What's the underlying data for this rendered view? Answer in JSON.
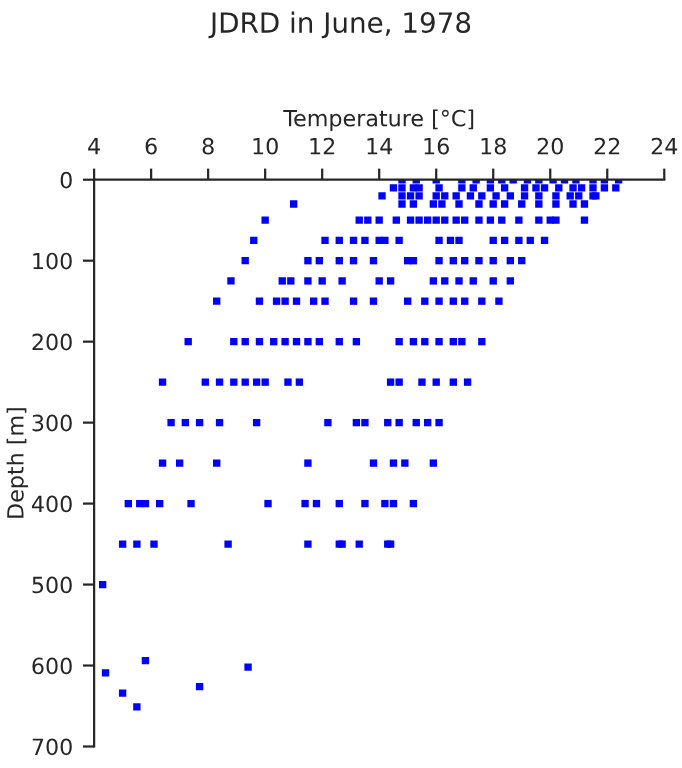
{
  "chart_data": {
    "type": "scatter",
    "title": "JDRD in June, 1978",
    "xlabel": "Temperature [°C]",
    "ylabel": "Depth [m]",
    "xlim": [
      4,
      24
    ],
    "xticks": [
      4,
      6,
      8,
      10,
      12,
      14,
      16,
      18,
      20,
      22,
      24
    ],
    "ylim": [
      700,
      0
    ],
    "yticks": [
      0,
      100,
      200,
      300,
      400,
      500,
      600,
      700
    ],
    "grid": false,
    "legend": false,
    "marker": "square",
    "series": [
      {
        "color": "#0000ff",
        "x": [
          14.8,
          15.3,
          16.0,
          16.9,
          17.4,
          17.9,
          18.3,
          18.7,
          19.2,
          19.6,
          20.1,
          20.5,
          20.9,
          21.5,
          21.9,
          22.4,
          14.5,
          14.8,
          15.2,
          15.4,
          16.1,
          16.9,
          17.3,
          17.9,
          18.4,
          19.1,
          19.5,
          19.8,
          20.3,
          20.8,
          21.1,
          21.5,
          21.9,
          22.3,
          14.1,
          14.8,
          15.1,
          15.4,
          16.0,
          16.3,
          16.7,
          17.2,
          17.6,
          18.1,
          18.6,
          19.1,
          19.6,
          20.2,
          20.7,
          21.0,
          21.5,
          21.6,
          11.0,
          14.8,
          15.2,
          15.9,
          16.2,
          16.8,
          17.5,
          18.0,
          18.4,
          19.0,
          19.6,
          20.2,
          20.8,
          21.2,
          10.0,
          13.3,
          13.6,
          14.0,
          14.6,
          15.1,
          15.4,
          15.7,
          16.0,
          16.3,
          16.7,
          17.0,
          17.5,
          17.9,
          18.3,
          18.9,
          19.6,
          20.0,
          20.2,
          21.2,
          9.6,
          12.1,
          12.6,
          13.1,
          13.5,
          14.0,
          14.2,
          14.7,
          16.1,
          16.5,
          16.8,
          18.0,
          18.4,
          18.9,
          19.3,
          19.8,
          9.3,
          11.5,
          11.9,
          12.6,
          13.1,
          13.8,
          15.0,
          15.2,
          16.1,
          16.6,
          17.0,
          17.5,
          18.0,
          18.6,
          19.0,
          8.8,
          10.6,
          10.9,
          11.5,
          12.0,
          12.7,
          14.0,
          14.4,
          15.9,
          16.3,
          16.8,
          17.3,
          18.0,
          18.6,
          8.3,
          9.8,
          10.4,
          10.7,
          11.1,
          11.7,
          12.1,
          13.1,
          13.8,
          15.0,
          15.6,
          16.1,
          16.6,
          17.0,
          17.6,
          18.2,
          7.3,
          8.9,
          9.3,
          9.8,
          10.3,
          10.7,
          11.1,
          11.5,
          11.9,
          12.6,
          13.2,
          14.7,
          15.2,
          15.6,
          16.1,
          16.6,
          16.9,
          17.6,
          6.4,
          7.9,
          8.4,
          8.9,
          9.3,
          9.7,
          10.0,
          10.8,
          11.2,
          14.4,
          14.7,
          15.5,
          16.0,
          16.6,
          17.1,
          6.7,
          7.2,
          7.7,
          8.4,
          9.7,
          12.2,
          13.2,
          13.5,
          14.3,
          14.7,
          15.3,
          15.7,
          16.1,
          6.4,
          7.0,
          8.3,
          11.5,
          13.8,
          14.5,
          14.9,
          15.9,
          5.2,
          5.6,
          5.8,
          6.3,
          7.4,
          10.1,
          11.4,
          11.8,
          12.6,
          13.5,
          14.2,
          14.5,
          15.2,
          5.0,
          5.5,
          6.1,
          8.7,
          11.5,
          12.6,
          12.7,
          13.3,
          14.3,
          14.4,
          4.3,
          5.8,
          4.4,
          9.4,
          7.7,
          5.0,
          5.5
        ],
        "values": [
          0,
          0,
          0,
          0,
          0,
          0,
          0,
          0,
          0,
          0,
          0,
          0,
          0,
          0,
          0,
          0,
          10,
          10,
          10,
          10,
          10,
          10,
          10,
          10,
          10,
          10,
          10,
          10,
          10,
          10,
          10,
          10,
          10,
          10,
          20,
          20,
          20,
          20,
          20,
          20,
          20,
          20,
          20,
          20,
          20,
          20,
          20,
          20,
          20,
          20,
          20,
          20,
          30,
          30,
          30,
          30,
          30,
          30,
          30,
          30,
          30,
          30,
          30,
          30,
          30,
          30,
          50,
          50,
          50,
          50,
          50,
          50,
          50,
          50,
          50,
          50,
          50,
          50,
          50,
          50,
          50,
          50,
          50,
          50,
          50,
          50,
          75,
          75,
          75,
          75,
          75,
          75,
          75,
          75,
          75,
          75,
          75,
          75,
          75,
          75,
          75,
          75,
          100,
          100,
          100,
          100,
          100,
          100,
          100,
          100,
          100,
          100,
          100,
          100,
          100,
          100,
          100,
          125,
          125,
          125,
          125,
          125,
          125,
          125,
          125,
          125,
          125,
          125,
          125,
          125,
          125,
          150,
          150,
          150,
          150,
          150,
          150,
          150,
          150,
          150,
          150,
          150,
          150,
          150,
          150,
          150,
          150,
          200,
          200,
          200,
          200,
          200,
          200,
          200,
          200,
          200,
          200,
          200,
          200,
          200,
          200,
          200,
          200,
          200,
          200,
          250,
          250,
          250,
          250,
          250,
          250,
          250,
          250,
          250,
          250,
          250,
          250,
          250,
          250,
          250,
          300,
          300,
          300,
          300,
          300,
          300,
          300,
          300,
          300,
          300,
          300,
          300,
          300,
          350,
          350,
          350,
          350,
          350,
          350,
          350,
          350,
          400,
          400,
          400,
          400,
          400,
          400,
          400,
          400,
          400,
          400,
          400,
          400,
          400,
          450,
          450,
          450,
          450,
          450,
          450,
          450,
          450,
          450,
          450,
          500,
          594,
          609,
          602,
          626,
          634,
          651
        ]
      }
    ]
  }
}
